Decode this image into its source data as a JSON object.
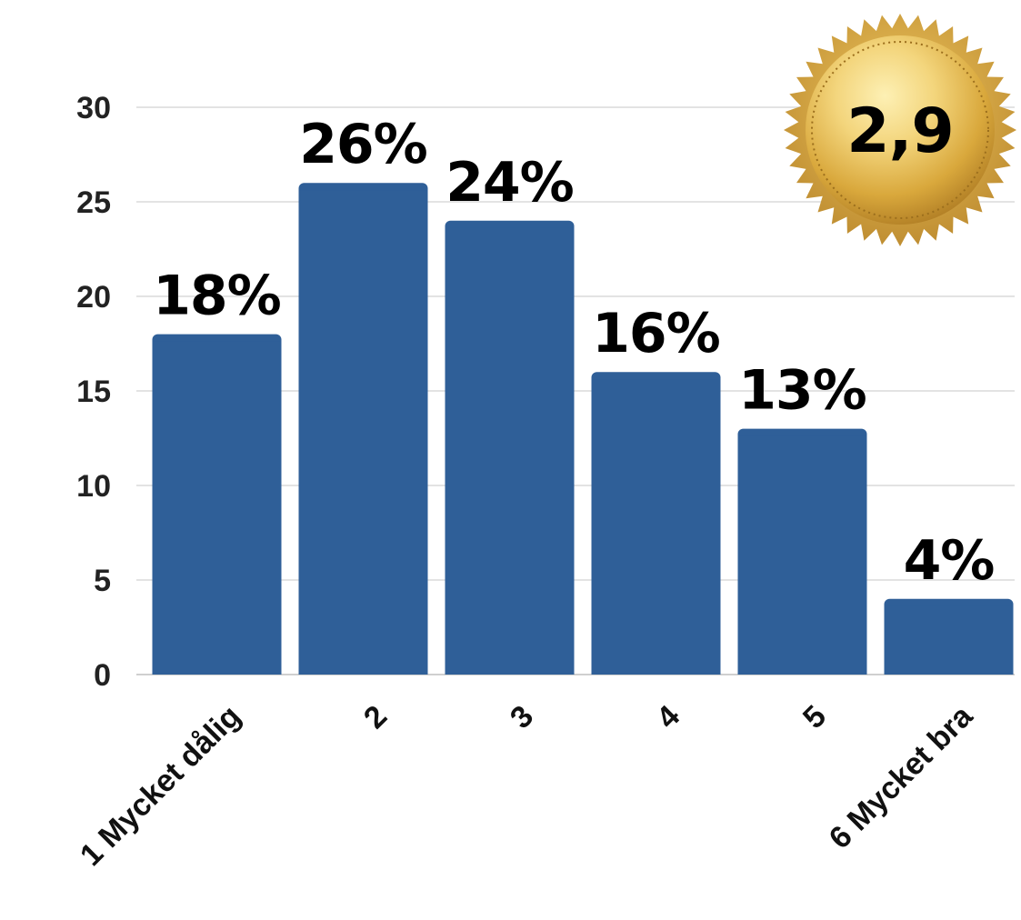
{
  "chart_data": {
    "type": "bar",
    "title": "",
    "xlabel": "",
    "ylabel": "",
    "categories": [
      "1 Mycket dålig",
      "2",
      "3",
      "4",
      "5",
      "6 Mycket bra"
    ],
    "values": [
      18,
      26,
      24,
      16,
      13,
      4
    ],
    "data_labels": [
      "18%",
      "26%",
      "24%",
      "16%",
      "13%",
      "4%"
    ],
    "ylim": [
      0,
      30
    ],
    "yticks": [
      "0",
      "5",
      "10",
      "15",
      "20",
      "25",
      "30"
    ],
    "grid": true,
    "legend": "none",
    "colors": {
      "bar": "#2f5f98",
      "grid": "#e3e3e3",
      "gold": "#e2b646"
    }
  },
  "badge": {
    "value": "2,9",
    "icon": "gold-seal-icon"
  }
}
